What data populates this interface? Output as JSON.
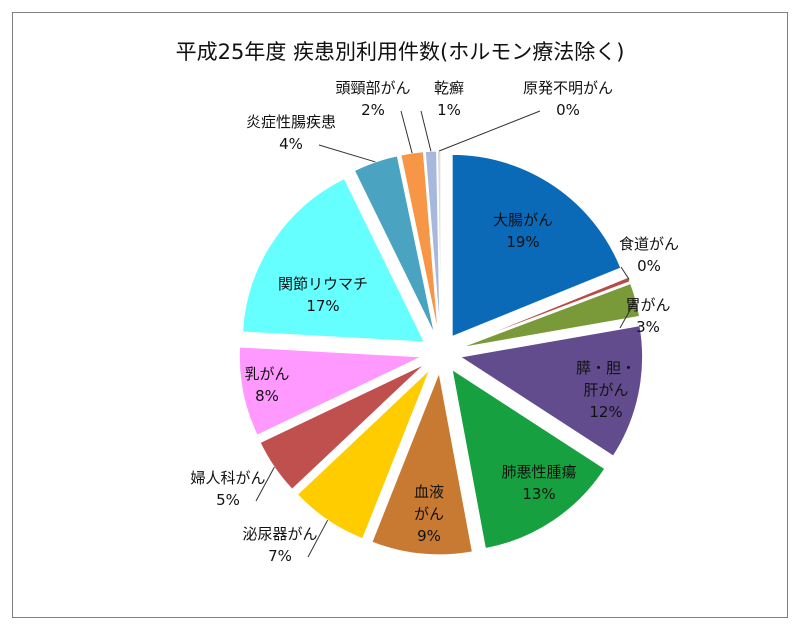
{
  "chart_data": {
    "type": "pie",
    "title": "平成25年度 疾患別利用件数(ホルモン療法除く)",
    "legend": "none",
    "slices": [
      {
        "name": "大腸がん",
        "value": 19,
        "pct_label": "19%",
        "color": "#0a6ab8"
      },
      {
        "name": "食道がん",
        "value": 0.4,
        "pct_label": "0%",
        "color": "#b94a4a"
      },
      {
        "name": "胃がん",
        "value": 3,
        "pct_label": "3%",
        "color": "#7a9a3a"
      },
      {
        "name": "膵・胆・肝がん",
        "value": 12,
        "pct_label": "12%",
        "color": "#634c8e"
      },
      {
        "name": "肺悪性腫瘍",
        "value": 13,
        "pct_label": "13%",
        "color": "#16a040"
      },
      {
        "name": "血液がん",
        "value": 9,
        "pct_label": "9%",
        "color": "#c87a33"
      },
      {
        "name": "泌尿器がん",
        "value": 7,
        "pct_label": "7%",
        "color": "#ffcc00"
      },
      {
        "name": "婦人科がん",
        "value": 5,
        "pct_label": "5%",
        "color": "#c0504d"
      },
      {
        "name": "乳がん",
        "value": 8,
        "pct_label": "8%",
        "color": "#ff99ff"
      },
      {
        "name": "関節リウマチ",
        "value": 17,
        "pct_label": "17%",
        "color": "#66ffff"
      },
      {
        "name": "炎症性腸疾患",
        "value": 4,
        "pct_label": "4%",
        "color": "#4aa3c0"
      },
      {
        "name": "頭頸部がん",
        "value": 2,
        "pct_label": "2%",
        "color": "#f79646"
      },
      {
        "name": "乾癬",
        "value": 1,
        "pct_label": "1%",
        "color": "#a8b8dc"
      },
      {
        "name": "原発不明がん",
        "value": 0.3,
        "pct_label": "0%",
        "color": "#dddddd"
      }
    ]
  }
}
